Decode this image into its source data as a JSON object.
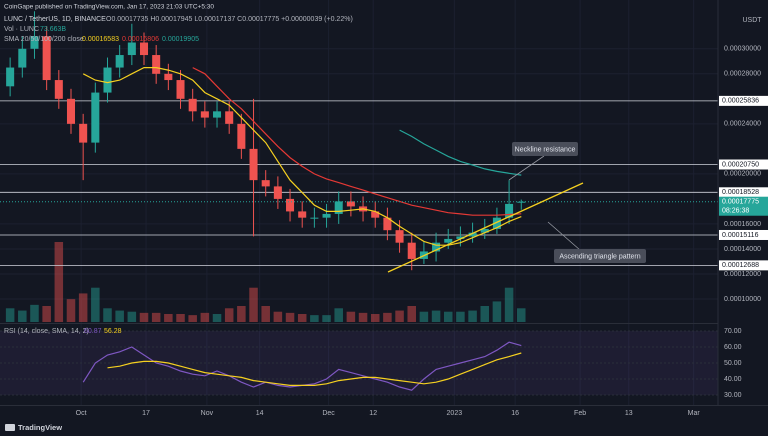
{
  "publisher": "CoinGape published on TradingView.com, Jan 17, 2023 21:03 UTC+5:30",
  "footer": "TradingView",
  "chart_data": [
    {
      "type": "candlestick",
      "title": "LUNC / TetherUS, 1D, BINANCE",
      "ohlc_label": "O0.00017735 H0.00017945 L0.00017137 C0.00017775 +0.00000039 (+0.22%)",
      "volume_label": "Vol · LUNC",
      "volume_total_label": "73.663B",
      "currency": "USDT",
      "price_tag_time": "08:26:38",
      "up_color": "#26a69a",
      "down_color": "#ef5350",
      "x": [
        "2022-09-12",
        "2022-09-15",
        "2022-09-18",
        "2022-09-21",
        "2022-09-24",
        "2022-09-27",
        "2022-09-30",
        "2022-10-03",
        "2022-10-06",
        "2022-10-09",
        "2022-10-12",
        "2022-10-15",
        "2022-10-18",
        "2022-10-21",
        "2022-10-24",
        "2022-10-27",
        "2022-10-30",
        "2022-11-02",
        "2022-11-05",
        "2022-11-08",
        "2022-11-11",
        "2022-11-14",
        "2022-11-17",
        "2022-11-20",
        "2022-11-23",
        "2022-11-26",
        "2022-11-29",
        "2022-12-02",
        "2022-12-05",
        "2022-12-08",
        "2022-12-11",
        "2022-12-14",
        "2022-12-17",
        "2022-12-20",
        "2022-12-23",
        "2022-12-26",
        "2022-12-29",
        "2023-01-01",
        "2023-01-04",
        "2023-01-07",
        "2023-01-10",
        "2023-01-13",
        "2023-01-16"
      ],
      "open": [
        0.00027,
        0.000285,
        0.0003,
        0.00031,
        0.000275,
        0.00026,
        0.00024,
        0.000225,
        0.000265,
        0.000285,
        0.000295,
        0.000305,
        0.000295,
        0.00028,
        0.000275,
        0.00026,
        0.00025,
        0.000245,
        0.00025,
        0.00024,
        0.00022,
        0.000195,
        0.00019,
        0.00018,
        0.00017,
        0.000165,
        0.000165,
        0.000168,
        0.000178,
        0.000174,
        0.00017,
        0.000165,
        0.000155,
        0.000145,
        0.000132,
        0.000138,
        0.000145,
        0.000148,
        0.00015,
        0.000153,
        0.000156,
        0.000165,
        0.00017735
      ],
      "high": [
        0.000293,
        0.00031,
        0.00033,
        0.000318,
        0.000283,
        0.000268,
        0.000248,
        0.000273,
        0.000293,
        0.000303,
        0.00032,
        0.000313,
        0.000303,
        0.000288,
        0.000283,
        0.000268,
        0.000258,
        0.000258,
        0.000258,
        0.000248,
        0.00026,
        0.000203,
        0.000198,
        0.000188,
        0.000178,
        0.000173,
        0.000176,
        0.000186,
        0.000186,
        0.000182,
        0.000178,
        0.000173,
        0.000163,
        0.000153,
        0.000146,
        0.000153,
        0.000156,
        0.000158,
        0.000161,
        0.000164,
        0.000173,
        0.000195,
        0.00017945
      ],
      "low": [
        0.000262,
        0.000277,
        0.000292,
        0.000267,
        0.000252,
        0.000232,
        0.000195,
        0.000217,
        0.000257,
        0.000277,
        0.000287,
        0.000287,
        0.000272,
        0.000267,
        0.000252,
        0.000242,
        0.000237,
        0.000237,
        0.000232,
        0.000212,
        0.00015,
        0.000182,
        0.000172,
        0.000162,
        0.000157,
        0.000157,
        0.000157,
        0.00016,
        0.000166,
        0.000162,
        0.000157,
        0.000147,
        0.000137,
        0.000123,
        0.000128,
        0.00013,
        0.00014,
        0.000142,
        0.000145,
        0.000148,
        0.000152,
        0.00016,
        0.00017137
      ],
      "close": [
        0.000285,
        0.0003,
        0.00031,
        0.000275,
        0.00026,
        0.00024,
        0.000225,
        0.000265,
        0.000285,
        0.000295,
        0.000305,
        0.000295,
        0.00028,
        0.000275,
        0.00026,
        0.00025,
        0.000245,
        0.00025,
        0.00024,
        0.00022,
        0.000195,
        0.00019,
        0.00018,
        0.00017,
        0.000165,
        0.000165,
        0.000168,
        0.000178,
        0.000174,
        0.00017,
        0.000165,
        0.000155,
        0.000145,
        0.000132,
        0.000138,
        0.000145,
        0.000148,
        0.00015,
        0.000153,
        0.000156,
        0.000165,
        0.000176,
        0.00017775
      ],
      "volume": [
        12,
        10,
        15,
        14,
        70,
        20,
        25,
        30,
        12,
        10,
        9,
        8,
        8,
        7,
        7,
        6,
        8,
        7,
        12,
        14,
        30,
        14,
        9,
        8,
        7,
        6,
        6,
        12,
        9,
        8,
        7,
        8,
        10,
        14,
        9,
        10,
        9,
        9,
        10,
        14,
        18,
        30,
        12
      ],
      "moving_averages": {
        "label": "SMA 20/50/100/200 close",
        "series": [
          {
            "color": "#f5d020",
            "values": [
              null,
              null,
              null,
              null,
              null,
              null,
              0.00028,
              0.000275,
              0.000273,
              0.000275,
              0.00028,
              0.000285,
              0.000285,
              0.000283,
              0.00028,
              0.000275,
              0.000265,
              0.00026,
              0.000255,
              0.000245,
              0.000235,
              0.000225,
              0.00021,
              0.000195,
              0.000185,
              0.000175,
              0.00017,
              0.00017,
              0.000171,
              0.000172,
              0.00017,
              0.000165,
              0.000158,
              0.000152,
              0.000146,
              0.000143,
              0.000143,
              0.000145,
              0.000149,
              0.000153,
              0.000157,
              0.000162,
              0.00016583
            ]
          },
          {
            "color": "#e53935",
            "values": [
              null,
              null,
              null,
              null,
              null,
              null,
              null,
              null,
              null,
              null,
              null,
              null,
              null,
              null,
              null,
              0.000285,
              0.00028,
              0.00027,
              0.00026,
              0.000252,
              0.000242,
              0.000232,
              0.000222,
              0.000213,
              0.000206,
              0.0002,
              0.000196,
              0.000193,
              0.00019,
              0.000187,
              0.000184,
              0.000181,
              0.000178,
              0.000175,
              0.000173,
              0.000171,
              0.000169,
              0.000168,
              0.000167,
              0.000167,
              0.000167,
              0.0001675,
              0.00016806
            ]
          },
          {
            "color": "#26a69a",
            "values": [
              null,
              null,
              null,
              null,
              null,
              null,
              null,
              null,
              null,
              null,
              null,
              null,
              null,
              null,
              null,
              null,
              null,
              null,
              null,
              null,
              null,
              null,
              null,
              null,
              null,
              null,
              null,
              null,
              null,
              null,
              null,
              null,
              0.000235,
              0.00023,
              0.000224,
              0.000219,
              0.000214,
              0.00021,
              0.000207,
              0.000204,
              0.000202,
              0.0002005,
              0.00019905
            ]
          }
        ]
      },
      "levels": [
        {
          "value": 0.00025836,
          "label": "0.00025836"
        },
        {
          "value": 0.0002075,
          "label": "0.00020750"
        },
        {
          "value": 0.00018528,
          "label": "0.00018528"
        },
        {
          "value": 0.00015116,
          "label": "0.00015116"
        },
        {
          "value": 0.00012688,
          "label": "0.00012688"
        }
      ],
      "annotations": [
        "Neckline resistance",
        "Ascending triangle pattern"
      ],
      "ylim": [
        8.16e-05,
        0.000339
      ],
      "yticks": [
        {
          "value": 0.0003,
          "label": "0.00030000"
        },
        {
          "value": 0.00028,
          "label": "0.00028000"
        },
        {
          "value": 0.00024,
          "label": "0.00024000"
        },
        {
          "value": 0.0002,
          "label": "0.00020000"
        },
        {
          "value": 0.00016,
          "label": "0.00016000"
        },
        {
          "value": 0.00014,
          "label": "0.00014000"
        },
        {
          "value": 0.00012,
          "label": "0.00012000"
        },
        {
          "value": 0.0001,
          "label": "0.00010000"
        }
      ],
      "xlim": [
        "2022-09-11",
        "2023-03-07"
      ],
      "xticks": [
        {
          "value": "2022-10-01",
          "label": "Oct"
        },
        {
          "value": "2022-10-17",
          "label": "17"
        },
        {
          "value": "2022-11-01",
          "label": "Nov"
        },
        {
          "value": "2022-11-14",
          "label": "14"
        },
        {
          "value": "2022-12-01",
          "label": "Dec"
        },
        {
          "value": "2022-12-12",
          "label": "12"
        },
        {
          "value": "2023-01-01",
          "label": "2023"
        },
        {
          "value": "2023-01-16",
          "label": "16"
        },
        {
          "value": "2023-02-01",
          "label": "Feb"
        },
        {
          "value": "2023-02-13",
          "label": "13"
        },
        {
          "value": "2023-03-01",
          "label": "Mar"
        }
      ]
    },
    {
      "type": "line",
      "title": "RSI (14, close, SMA, 14, 2)",
      "series": [
        {
          "color": "#7e57c2",
          "values": [
            null,
            null,
            null,
            null,
            null,
            null,
            38,
            50,
            55,
            57,
            60,
            55,
            50,
            48,
            45,
            43,
            42,
            45,
            42,
            38,
            35,
            38,
            36,
            35,
            36,
            37,
            40,
            46,
            44,
            42,
            40,
            38,
            35,
            33,
            40,
            46,
            48,
            50,
            52,
            54,
            58,
            63,
            60.87
          ]
        },
        {
          "color": "#f5d020",
          "values": [
            null,
            null,
            null,
            null,
            null,
            null,
            null,
            null,
            47,
            48,
            50,
            51,
            51,
            50,
            48,
            46,
            44,
            43,
            42,
            41,
            39,
            38,
            37,
            36,
            36,
            36,
            37,
            39,
            40,
            41,
            41,
            40,
            39,
            38,
            37,
            38,
            40,
            43,
            46,
            49,
            52,
            54,
            56.28
          ]
        }
      ],
      "ylim": [
        23.75,
        73.75
      ],
      "yticks": [
        {
          "value": 70,
          "label": "70.00"
        },
        {
          "value": 60,
          "label": "60.00"
        },
        {
          "value": 50,
          "label": "50.00"
        },
        {
          "value": 40,
          "label": "40.00"
        },
        {
          "value": 30,
          "label": "30.00"
        }
      ]
    }
  ]
}
